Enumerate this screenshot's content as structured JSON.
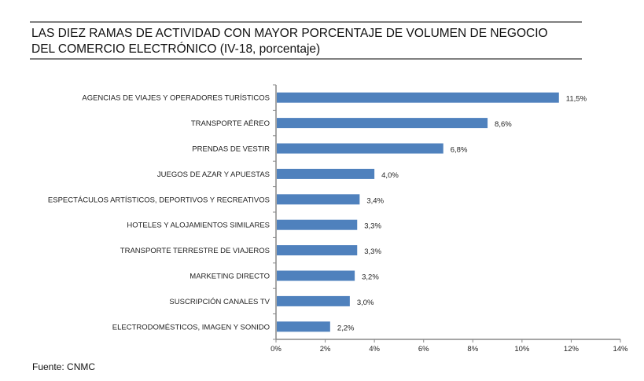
{
  "title_line1": "LAS DIEZ RAMAS DE ACTIVIDAD CON MAYOR PORCENTAJE DE VOLUMEN DE NEGOCIO",
  "title_line2": "DEL COMERCIO ELECTRÓNICO (IV-18, porcentaje)",
  "source": "Fuente: CNMC",
  "chart_data": {
    "type": "bar",
    "orientation": "horizontal",
    "categories": [
      "AGENCIAS DE VIAJES Y OPERADORES TURÍSTICOS",
      "TRANSPORTE AÉREO",
      "PRENDAS DE VESTIR",
      "JUEGOS DE AZAR Y APUESTAS",
      "ESPECTÁCULOS ARTÍSTICOS, DEPORTIVOS Y RECREATIVOS",
      "HOTELES  Y ALOJAMIENTOS SIMILARES",
      "TRANSPORTE TERRESTRE DE VIAJEROS",
      "MARKETING DIRECTO",
      "SUSCRIPCIÓN CANALES TV",
      "ELECTRODOMÉSTICOS,  IMAGEN Y SONIDO"
    ],
    "values": [
      11.5,
      8.6,
      6.8,
      4.0,
      3.4,
      3.3,
      3.3,
      3.2,
      3.0,
      2.2
    ],
    "data_labels": [
      "11,5%",
      "8,6%",
      "6,8%",
      "4,0%",
      "3,4%",
      "3,3%",
      "3,3%",
      "3,2%",
      "3,0%",
      "2,2%"
    ],
    "xlim": [
      0,
      14
    ],
    "xticks": [
      "0%",
      "2%",
      "4%",
      "6%",
      "8%",
      "10%",
      "12%",
      "14%"
    ],
    "grid": false,
    "bar_color": "#4f81bd"
  }
}
